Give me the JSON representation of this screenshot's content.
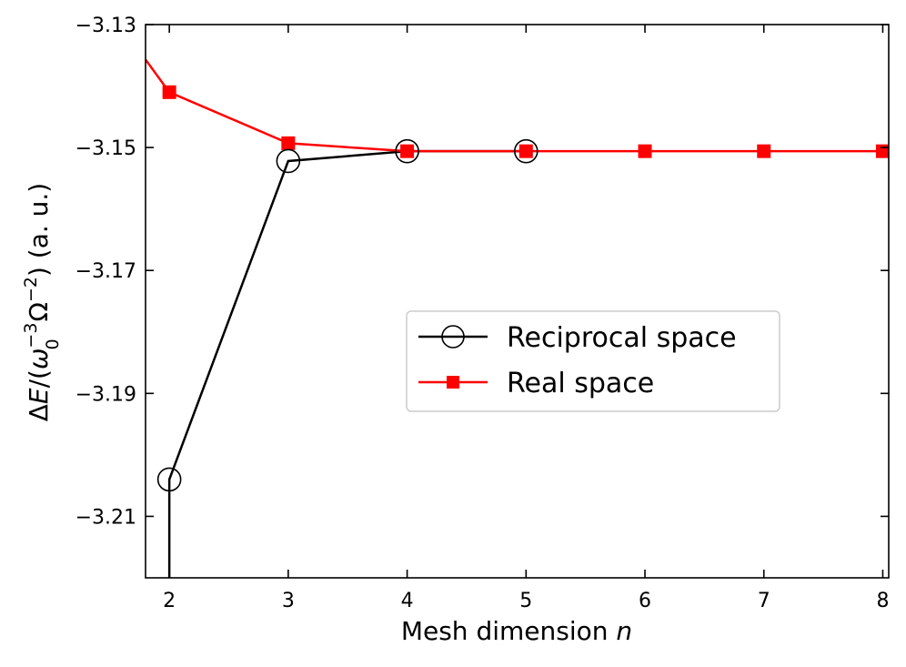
{
  "chart_data": {
    "type": "line",
    "xlabel": "Mesh dimension n",
    "xlabel_parts": {
      "text": "Mesh dimension ",
      "variable": "n"
    },
    "ylabel": "ΔE/(ω0^−3 Ω^−2) (a. u.)",
    "ylabel_parts": {
      "delta": "Δ",
      "E": "E",
      "slash_open": "/(",
      "omega": "ω",
      "omega_sub": "0",
      "omega_sup": "−3",
      "Omega": "Ω",
      "Omega_sup": "−2",
      "close_units": ") (a. u.)"
    },
    "xlim": [
      1.8,
      8.05
    ],
    "ylim": [
      -3.22,
      -3.13
    ],
    "x_ticks": [
      2,
      3,
      4,
      5,
      6,
      7,
      8
    ],
    "x_tick_labels": [
      "2",
      "3",
      "4",
      "5",
      "6",
      "7",
      "8"
    ],
    "y_ticks": [
      -3.13,
      -3.15,
      -3.17,
      -3.19,
      -3.21
    ],
    "y_tick_labels": [
      "−3.13",
      "−3.15",
      "−3.17",
      "−3.19",
      "−3.21"
    ],
    "grid": false,
    "legend_position": "center-right",
    "series": [
      {
        "name": "Reciprocal space",
        "color": "#000000",
        "marker": "open-circle",
        "x": [
          2,
          3,
          4,
          5
        ],
        "y": [
          -3.204,
          -3.1522,
          -3.1506,
          -3.1506
        ],
        "extends_below_axis_from_x": 2
      },
      {
        "name": "Real space",
        "color": "#ff0000",
        "marker": "filled-square",
        "x": [
          2,
          3,
          4,
          5,
          6,
          7,
          8
        ],
        "y": [
          -3.141,
          -3.1493,
          -3.1506,
          -3.1506,
          -3.1506,
          -3.1506,
          -3.1506
        ],
        "extends_left_to_axis_at_y": -3.13
      }
    ]
  }
}
